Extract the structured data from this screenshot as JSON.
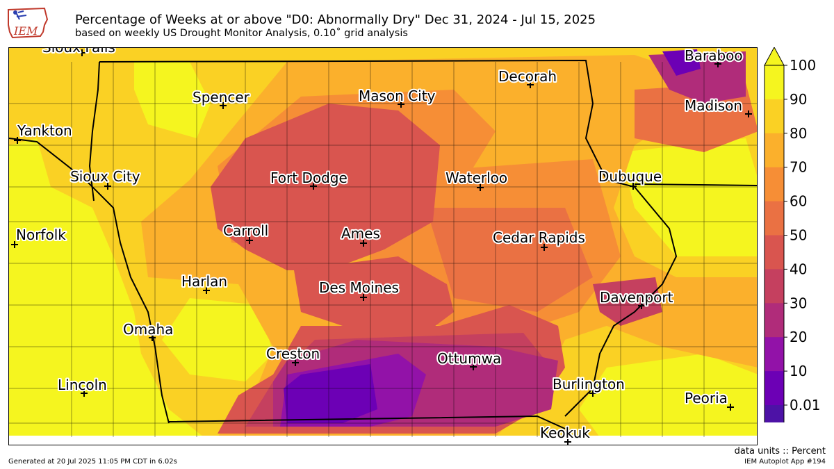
{
  "header": {
    "title": "Percentage of Weeks at or above \"D0: Abnormally Dry\" Dec 31, 2024 - Jul 15, 2025",
    "subtitle": "based on weekly US Drought Monitor Analysis, 0.10˚ grid analysis"
  },
  "logo": {
    "text": "IEM"
  },
  "colorbar": {
    "ticks": [
      "100",
      "90",
      "80",
      "70",
      "60",
      "50",
      "40",
      "30",
      "20",
      "10",
      "0.01"
    ],
    "colors": [
      "#f5f51f",
      "#fad124",
      "#fbb02c",
      "#f68e36",
      "#ea7143",
      "#d9554f",
      "#c5405f",
      "#b02c7a",
      "#9212a8",
      "#6c00b5",
      "#4d12a6"
    ]
  },
  "cities": [
    {
      "name": "Sioux Falls"
    },
    {
      "name": "Baraboo"
    },
    {
      "name": "Decorah"
    },
    {
      "name": "Spencer"
    },
    {
      "name": "Mason City"
    },
    {
      "name": "Madison"
    },
    {
      "name": "Yankton"
    },
    {
      "name": "Sioux City"
    },
    {
      "name": "Fort Dodge"
    },
    {
      "name": "Waterloo"
    },
    {
      "name": "Dubuque"
    },
    {
      "name": "Norfolk"
    },
    {
      "name": "Carroll"
    },
    {
      "name": "Ames"
    },
    {
      "name": "Cedar Rapids"
    },
    {
      "name": "Harlan"
    },
    {
      "name": "Des Moines"
    },
    {
      "name": "Davenport"
    },
    {
      "name": "Omaha"
    },
    {
      "name": "Creston"
    },
    {
      "name": "Ottumwa"
    },
    {
      "name": "Burlington"
    },
    {
      "name": "Lincoln"
    },
    {
      "name": "Peoria"
    },
    {
      "name": "Keokuk"
    }
  ],
  "footer": {
    "generated": "Generated at 20 Jul 2025 11:05 PM CDT in 6.02s",
    "units": "data units :: Percent",
    "app": "IEM Autoplot App #194"
  }
}
